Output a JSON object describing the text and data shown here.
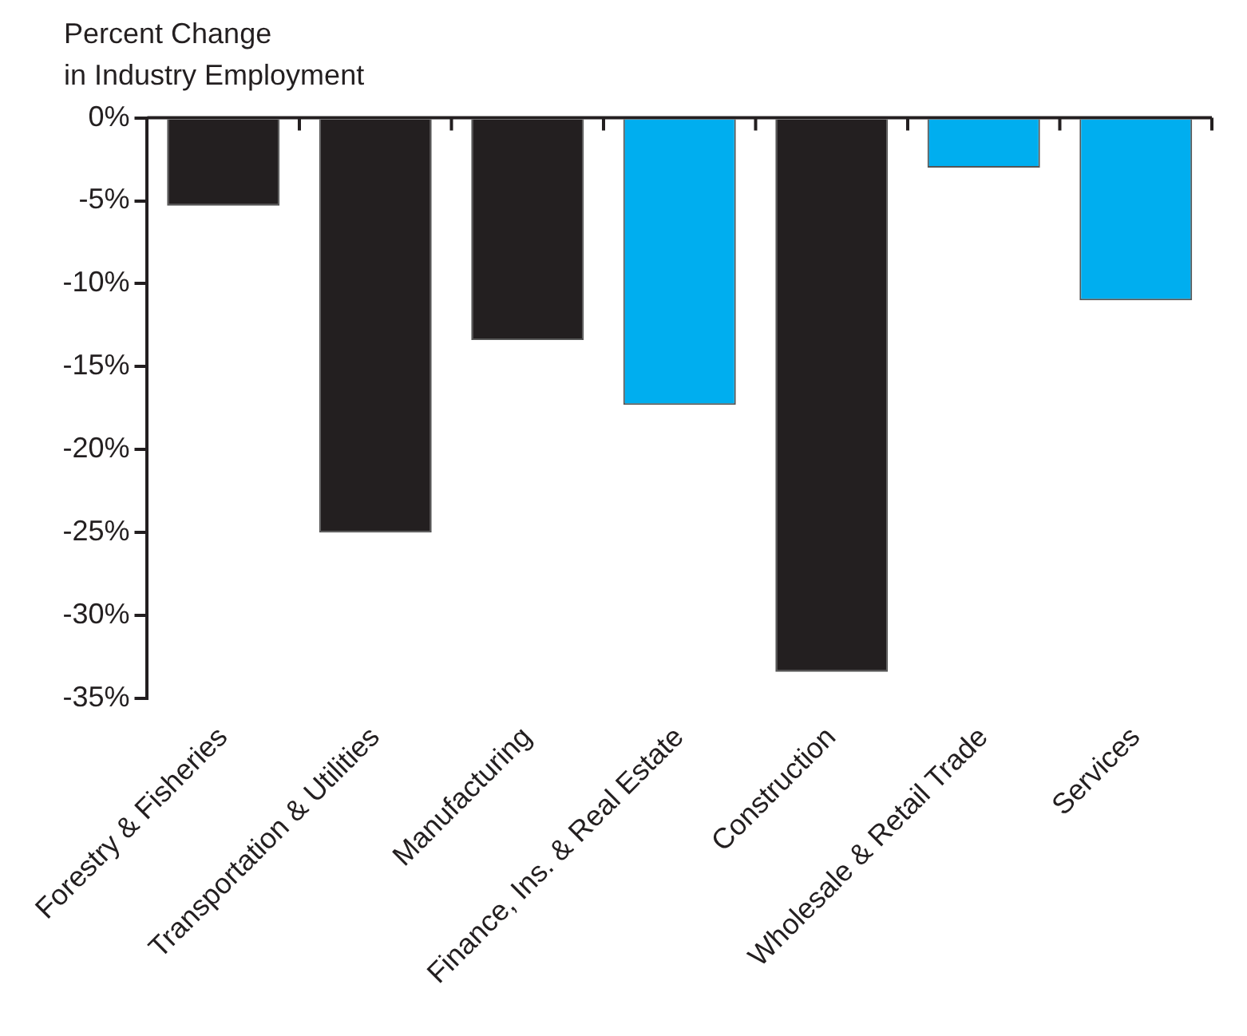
{
  "chart_data": {
    "type": "bar",
    "ylabel": "Percent Change\nin Industry Employment",
    "categories": [
      "Forestry & Fisheries",
      "Transportation & Utilities",
      "Manufacturing",
      "Finance, Ins. & Real Estate",
      "Construction",
      "Wholesale & Retail Trade",
      "Services"
    ],
    "values": [
      -5.3,
      -25,
      -13.4,
      -17.3,
      -33.4,
      -3,
      -11
    ],
    "colors": [
      "#231f20",
      "#231f20",
      "#231f20",
      "#00aeef",
      "#231f20",
      "#00aeef",
      "#00aeef"
    ],
    "ylim": [
      -35,
      0
    ],
    "yticks": [
      {
        "value": 0,
        "label": "0%"
      },
      {
        "value": -5,
        "label": "-5%"
      },
      {
        "value": -10,
        "label": "-10%"
      },
      {
        "value": -15,
        "label": "-15%"
      },
      {
        "value": -20,
        "label": "-20%"
      },
      {
        "value": -25,
        "label": "-25%"
      },
      {
        "value": -30,
        "label": "-30%"
      },
      {
        "value": -35,
        "label": "-35%"
      }
    ],
    "grid": false,
    "legend": false
  }
}
